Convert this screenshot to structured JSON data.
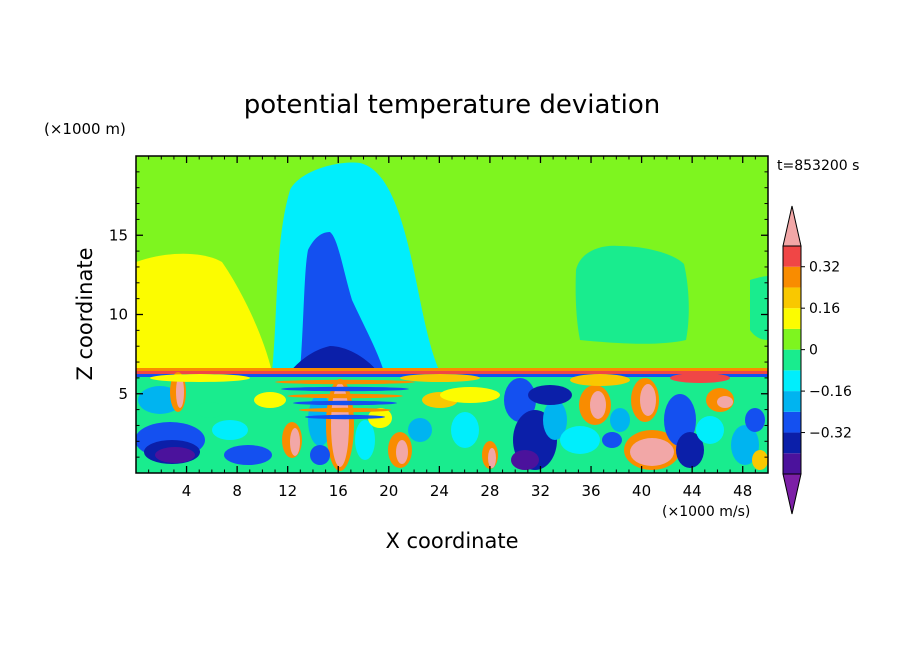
{
  "chart_data": {
    "type": "heatmap",
    "title": "potential temperature deviation",
    "xlabel": "X coordinate",
    "ylabel": "Z coordinate",
    "x_unit": "(×1000 m/s)",
    "y_unit": "(×1000 m)",
    "time_label": "t=853200 s",
    "x_ticks": [
      4,
      8,
      12,
      16,
      20,
      24,
      28,
      32,
      36,
      40,
      44,
      48
    ],
    "y_ticks": [
      5,
      10,
      15
    ],
    "xlim": [
      0,
      50
    ],
    "ylim": [
      0,
      20
    ],
    "colorbar": {
      "levels": [
        -0.48,
        -0.4,
        -0.32,
        -0.24,
        -0.16,
        -0.08,
        0,
        0.08,
        0.16,
        0.24,
        0.32,
        0.4,
        0.48
      ],
      "tick_labels": [
        "0.32",
        "0.16",
        "0",
        "−0.16",
        "−0.32"
      ],
      "tick_values": [
        0.32,
        0.16,
        0,
        -0.16,
        -0.32
      ],
      "colors": [
        "#7c1fa6",
        "#4b129c",
        "#0b1fa9",
        "#1450f0",
        "#00b4f0",
        "#00eefc",
        "#19ec8e",
        "#7ef51f",
        "#fcfc00",
        "#f9c800",
        "#f98c00",
        "#f04646",
        "#f2a7a7"
      ]
    }
  }
}
